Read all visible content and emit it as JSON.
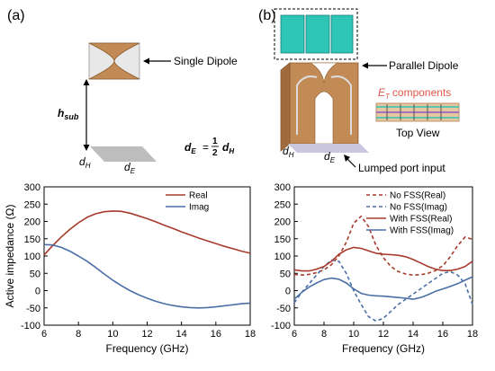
{
  "panels": {
    "a": {
      "label": "(a)",
      "annotations": {
        "single_dipole": "Single Dipole",
        "h": "h",
        "h_sub": "sub",
        "d": "d",
        "H": "H",
        "E": "E",
        "eq_lhs_d": "d",
        "eq_lhs_sub": "E",
        "eq_equals": "=",
        "eq_num": "1",
        "eq_den": "2",
        "eq_rhs_d": "d",
        "eq_rhs_sub": "H"
      }
    },
    "b": {
      "label": "(b)",
      "annotations": {
        "parallel_dipole": "Parallel Dipole",
        "et": "E",
        "et_sub": "T",
        "et_rest": "components",
        "top_view": "Top View",
        "d": "d",
        "H": "H",
        "E": "E",
        "lumped_port": "Lumped port input"
      }
    }
  },
  "colors": {
    "real": "#a83a2c",
    "imag": "#4a6fa5",
    "dipole": "#c28a55",
    "fss": "#2ec4b6",
    "ground": "#bdbdbd",
    "et": "#e0584a"
  },
  "chart_data": [
    {
      "type": "line",
      "xlabel": "Frequency (GHz)",
      "ylabel": "Active impedance (Ω)",
      "xlim": [
        6,
        18
      ],
      "ylim": [
        -100,
        300
      ],
      "xticks": [
        6,
        8,
        10,
        12,
        14,
        16,
        18
      ],
      "yticks": [
        -100,
        -50,
        0,
        50,
        100,
        150,
        200,
        250,
        300
      ],
      "legend_position": "top-right",
      "series": [
        {
          "name": "Real",
          "color": "#a83a2c",
          "dash": "solid",
          "x": [
            6,
            6.5,
            7,
            7.5,
            8,
            8.5,
            9,
            9.5,
            10,
            10.5,
            11,
            11.5,
            12,
            12.5,
            13,
            13.5,
            14,
            14.5,
            15,
            15.5,
            16,
            16.5,
            17,
            17.5,
            18
          ],
          "y": [
            103,
            130,
            155,
            177,
            196,
            212,
            222,
            228,
            230,
            229,
            224,
            216,
            208,
            199,
            189,
            180,
            170,
            161,
            152,
            144,
            136,
            128,
            121,
            114,
            108
          ]
        },
        {
          "name": "Imag",
          "color": "#4a6fa5",
          "dash": "solid",
          "x": [
            6,
            6.5,
            7,
            7.5,
            8,
            8.5,
            9,
            9.5,
            10,
            10.5,
            11,
            11.5,
            12,
            12.5,
            13,
            13.5,
            14,
            14.5,
            15,
            15.5,
            16,
            16.5,
            17,
            17.5,
            18
          ],
          "y": [
            133,
            132,
            125,
            114,
            100,
            85,
            67,
            48,
            30,
            14,
            0,
            -12,
            -22,
            -31,
            -38,
            -43,
            -47,
            -49,
            -50,
            -49,
            -47,
            -44,
            -41,
            -38,
            -36
          ]
        }
      ]
    },
    {
      "type": "line",
      "xlabel": "Frequency (GHz)",
      "ylabel": "",
      "xlim": [
        6,
        18
      ],
      "ylim": [
        -100,
        300
      ],
      "xticks": [
        6,
        8,
        10,
        12,
        14,
        16,
        18
      ],
      "yticks": [
        -100,
        -50,
        0,
        50,
        100,
        150,
        200,
        250,
        300
      ],
      "legend_position": "top-right",
      "series": [
        {
          "name": "No FSS(Real)",
          "color": "#a83a2c",
          "dash": "dashed",
          "x": [
            6,
            6.5,
            7,
            7.5,
            8,
            8.5,
            9,
            9.5,
            10,
            10.5,
            11,
            11.5,
            12,
            12.5,
            13,
            13.5,
            14,
            14.5,
            15,
            15.5,
            16,
            16.5,
            17,
            17.5,
            18
          ],
          "y": [
            47,
            45,
            47,
            52,
            60,
            75,
            100,
            140,
            195,
            215,
            185,
            130,
            95,
            70,
            55,
            48,
            45,
            46,
            50,
            58,
            72,
            98,
            130,
            155,
            148
          ]
        },
        {
          "name": "No FSS(Imag)",
          "color": "#4a6fa5",
          "dash": "dashed",
          "x": [
            6,
            6.5,
            7,
            7.5,
            8,
            8.5,
            9,
            9.5,
            10,
            10.5,
            11,
            11.5,
            12,
            12.5,
            13,
            13.5,
            14,
            14.5,
            15,
            15.5,
            16,
            16.5,
            17,
            17.5,
            18
          ],
          "y": [
            -35,
            -5,
            20,
            45,
            70,
            88,
            85,
            50,
            0,
            -40,
            -75,
            -88,
            -80,
            -60,
            -40,
            -25,
            -10,
            5,
            20,
            35,
            50,
            55,
            45,
            20,
            -40
          ]
        },
        {
          "name": "With FSS(Real)",
          "color": "#a83a2c",
          "dash": "solid",
          "x": [
            6,
            6.5,
            7,
            7.5,
            8,
            8.5,
            9,
            9.5,
            10,
            10.5,
            11,
            11.5,
            12,
            12.5,
            13,
            13.5,
            14,
            14.5,
            15,
            15.5,
            16,
            16.5,
            17,
            17.5,
            18
          ],
          "y": [
            60,
            57,
            57,
            62,
            70,
            85,
            105,
            118,
            125,
            122,
            115,
            108,
            105,
            104,
            102,
            98,
            90,
            80,
            70,
            62,
            58,
            58,
            62,
            70,
            85
          ]
        },
        {
          "name": "With FSS(Imag)",
          "color": "#4a6fa5",
          "dash": "solid",
          "x": [
            6,
            6.5,
            7,
            7.5,
            8,
            8.5,
            9,
            9.5,
            10,
            10.5,
            11,
            11.5,
            12,
            12.5,
            13,
            13.5,
            14,
            14.5,
            15,
            15.5,
            16,
            16.5,
            17,
            17.5,
            18
          ],
          "y": [
            -25,
            -5,
            10,
            22,
            32,
            36,
            33,
            22,
            5,
            -8,
            -13,
            -15,
            -16,
            -18,
            -20,
            -22,
            -25,
            -20,
            -12,
            -2,
            5,
            12,
            20,
            30,
            40
          ]
        }
      ]
    }
  ]
}
